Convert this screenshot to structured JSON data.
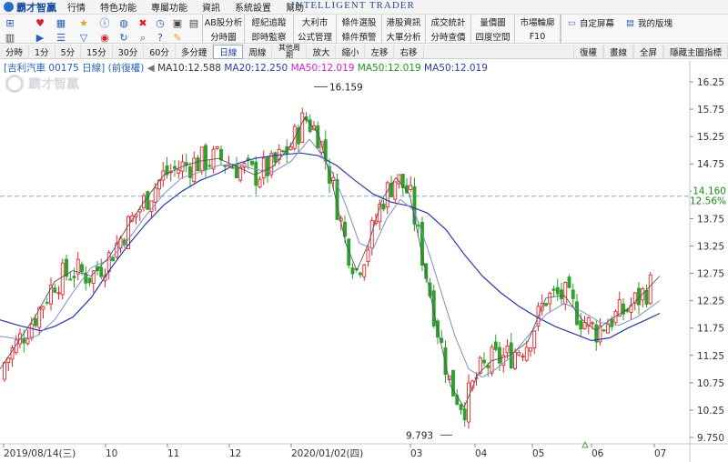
{
  "app": {
    "logo": "霸才智贏",
    "brand": "INTELLIGENT TRADER"
  },
  "menu": [
    "行情",
    "特色功能",
    "專屬功能",
    "資訊",
    "系統設置",
    "幫助"
  ],
  "toolbar": {
    "functions_row1": [
      "AB股分析",
      "經紀追蹤",
      "大利市",
      "條件選股",
      "港股資訊",
      "成交統計",
      "量價圖",
      "市場輪廓"
    ],
    "functions_row2": [
      "分時圖",
      "即時監察",
      "公式管理",
      "條件預警",
      "大單分析",
      "分時查價",
      "四度空間",
      "F10"
    ],
    "custom_screen": "自定屏幕",
    "my_board": "我的版塊"
  },
  "periods": [
    "分時",
    "1分",
    "5分",
    "15分",
    "30分",
    "60分",
    "多分鐘",
    "日線",
    "周線",
    "其他周期",
    "放大",
    "縮小",
    "左移",
    "右移"
  ],
  "active_period": "日線",
  "right_buttons": [
    "復權",
    "畫線",
    "全屏",
    "隱藏主圖指標"
  ],
  "info": {
    "stock": "[吉利汽車 00175 日線]",
    "adjust": "(前復權)",
    "ma10": "MA10:12.588",
    "ma20": "MA20:12.250",
    "ma50a": "MA50:12.019",
    "ma50b": "MA50:12.019",
    "ma50c": "MA50:12.019"
  },
  "annotations": {
    "high": "16.159",
    "low": "9.793",
    "last_price": "14.160",
    "last_change": "12.56%"
  },
  "colors": {
    "up": "#e8262b",
    "down": "#2ea02e",
    "ma10": "#555555",
    "ma20": "#7f8fbf",
    "ma50": "#2b3aa8",
    "ref_line": "#7fa7d6",
    "price_label": "#1a8a1a"
  },
  "chart_data": {
    "type": "candlestick",
    "y_ticks": [
      "16.25",
      "15.75",
      "15.25",
      "14.75",
      "14.25",
      "13.75",
      "13.25",
      "12.75",
      "12.25",
      "11.75",
      "11.25",
      "10.75",
      "10.25",
      "9.750"
    ],
    "x_labels": [
      "2019/08/14(三)",
      "10",
      "11",
      "12",
      "2020/01/02(四)",
      "03",
      "04",
      "05",
      "06",
      "07"
    ],
    "ylim": [
      9.7,
      16.35
    ],
    "ma50_path": [
      [
        0,
        11.9
      ],
      [
        20,
        11.8
      ],
      [
        45,
        11.7
      ],
      [
        60,
        11.78
      ],
      [
        80,
        11.95
      ],
      [
        100,
        12.3
      ],
      [
        120,
        12.8
      ],
      [
        140,
        13.25
      ],
      [
        160,
        13.65
      ],
      [
        180,
        14.0
      ],
      [
        200,
        14.25
      ],
      [
        220,
        14.45
      ],
      [
        240,
        14.58
      ],
      [
        260,
        14.75
      ],
      [
        280,
        14.85
      ],
      [
        300,
        14.9
      ],
      [
        330,
        14.95
      ],
      [
        350,
        14.9
      ],
      [
        370,
        14.72
      ],
      [
        390,
        14.45
      ],
      [
        410,
        14.2
      ],
      [
        430,
        14.05
      ],
      [
        450,
        13.98
      ],
      [
        470,
        13.85
      ],
      [
        490,
        13.55
      ],
      [
        510,
        13.1
      ],
      [
        530,
        12.7
      ],
      [
        550,
        12.4
      ],
      [
        570,
        12.15
      ],
      [
        590,
        11.95
      ],
      [
        610,
        11.78
      ],
      [
        630,
        11.65
      ],
      [
        650,
        11.52
      ],
      [
        670,
        11.57
      ],
      [
        690,
        11.75
      ],
      [
        710,
        11.9
      ],
      [
        725,
        12.02
      ]
    ],
    "ma20_path": [
      [
        0,
        11.6
      ],
      [
        20,
        11.55
      ],
      [
        40,
        11.6
      ],
      [
        60,
        11.9
      ],
      [
        80,
        12.4
      ],
      [
        100,
        12.85
      ],
      [
        120,
        13.0
      ],
      [
        140,
        13.35
      ],
      [
        160,
        13.8
      ],
      [
        180,
        14.2
      ],
      [
        200,
        14.5
      ],
      [
        220,
        14.6
      ],
      [
        240,
        14.72
      ],
      [
        260,
        14.75
      ],
      [
        280,
        14.65
      ],
      [
        300,
        14.6
      ],
      [
        320,
        14.8
      ],
      [
        340,
        15.2
      ],
      [
        350,
        15.0
      ],
      [
        365,
        14.6
      ],
      [
        380,
        14.0
      ],
      [
        395,
        13.3
      ],
      [
        410,
        13.2
      ],
      [
        425,
        13.75
      ],
      [
        440,
        14.1
      ],
      [
        455,
        13.9
      ],
      [
        470,
        13.2
      ],
      [
        485,
        12.4
      ],
      [
        500,
        11.6
      ],
      [
        515,
        11.0
      ],
      [
        530,
        10.85
      ],
      [
        545,
        11.0
      ],
      [
        560,
        11.2
      ],
      [
        580,
        11.6
      ],
      [
        600,
        12.0
      ],
      [
        620,
        12.2
      ],
      [
        640,
        12.05
      ],
      [
        660,
        11.85
      ],
      [
        680,
        11.8
      ],
      [
        700,
        11.95
      ],
      [
        725,
        12.25
      ]
    ],
    "ma10_path": [
      [
        0,
        11.0
      ],
      [
        20,
        11.5
      ],
      [
        40,
        12.0
      ],
      [
        60,
        12.6
      ],
      [
        80,
        12.8
      ],
      [
        100,
        12.7
      ],
      [
        120,
        13.05
      ],
      [
        140,
        13.6
      ],
      [
        160,
        14.1
      ],
      [
        180,
        14.55
      ],
      [
        200,
        14.7
      ],
      [
        220,
        14.8
      ],
      [
        240,
        14.85
      ],
      [
        260,
        14.7
      ],
      [
        280,
        14.55
      ],
      [
        300,
        14.7
      ],
      [
        320,
        15.1
      ],
      [
        335,
        15.6
      ],
      [
        350,
        15.3
      ],
      [
        365,
        14.4
      ],
      [
        380,
        13.3
      ],
      [
        392,
        12.8
      ],
      [
        405,
        13.3
      ],
      [
        420,
        14.1
      ],
      [
        435,
        14.5
      ],
      [
        450,
        14.2
      ],
      [
        465,
        13.0
      ],
      [
        480,
        11.8
      ],
      [
        495,
        10.7
      ],
      [
        510,
        10.3
      ],
      [
        525,
        10.9
      ],
      [
        540,
        11.15
      ],
      [
        560,
        11.25
      ],
      [
        580,
        11.5
      ],
      [
        600,
        12.3
      ],
      [
        620,
        12.35
      ],
      [
        640,
        11.9
      ],
      [
        655,
        11.7
      ],
      [
        670,
        11.9
      ],
      [
        690,
        12.1
      ],
      [
        705,
        12.35
      ],
      [
        725,
        12.7
      ]
    ]
  }
}
